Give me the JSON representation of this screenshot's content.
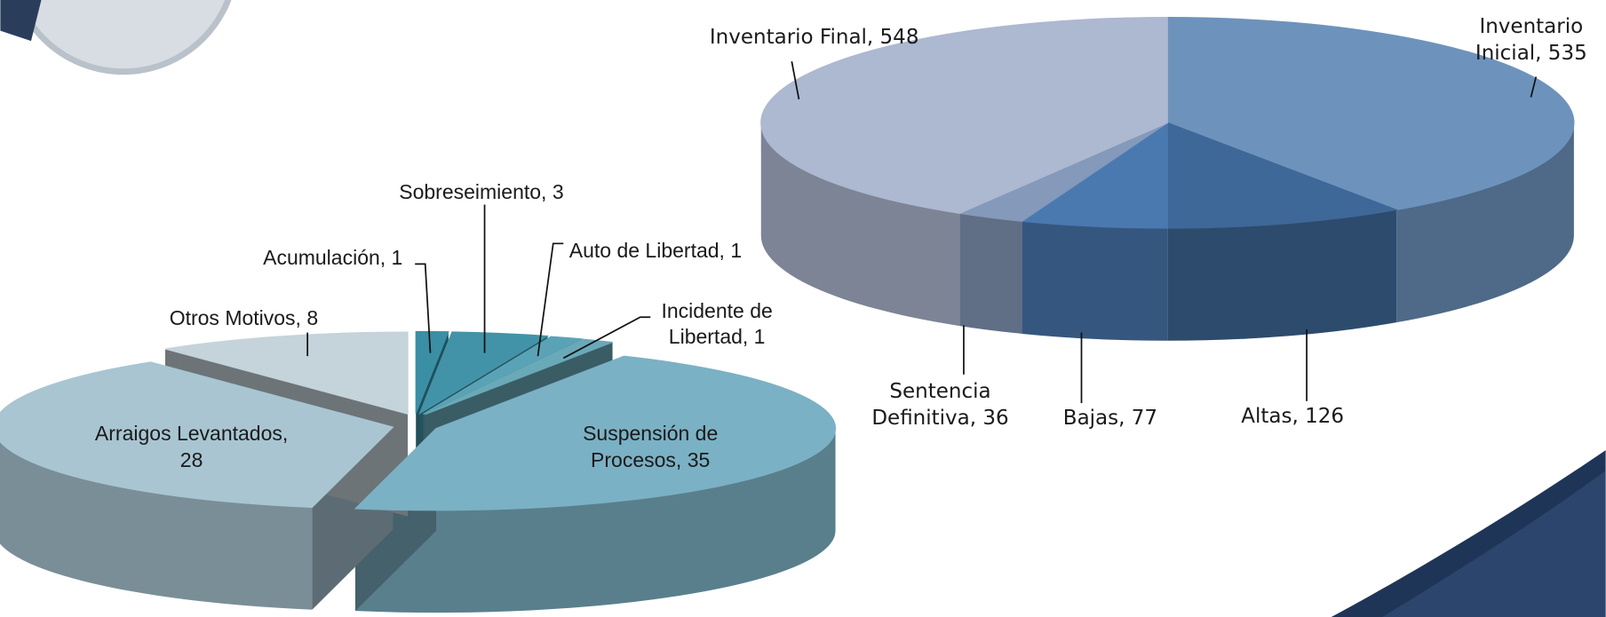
{
  "chart_data": [
    {
      "type": "pie",
      "values": [
        1,
        3,
        1,
        1,
        35,
        28,
        8
      ],
      "value_labels": [
        "Acumulación, 1",
        "Sobreseimiento, 3",
        "Auto de Libertad, 1",
        "Incidente de Libertad, 1",
        "Suspensión de Procesos, 35",
        "Arraigos Levantados, 28",
        "Otros Motivos, 8"
      ],
      "colors": [
        "#3a8fa5",
        "#4393a8",
        "#5aa3b6",
        "#6aa9b8",
        "#7bb1c4",
        "#a9c5d2",
        "#c5d3da"
      ],
      "exploded": true
    },
    {
      "type": "pie",
      "values": [
        535,
        126,
        77,
        36,
        548
      ],
      "value_labels": [
        "Inventario Inicial, 535",
        "Altas, 126",
        "Bajas, 77",
        "Sentencia Definitiva, 36",
        "Inventario Final, 548"
      ],
      "colors": [
        "#6d93bd",
        "#3e6898",
        "#4a79b0",
        "#8599ba",
        "#adb8d1"
      ],
      "exploded": false
    }
  ]
}
